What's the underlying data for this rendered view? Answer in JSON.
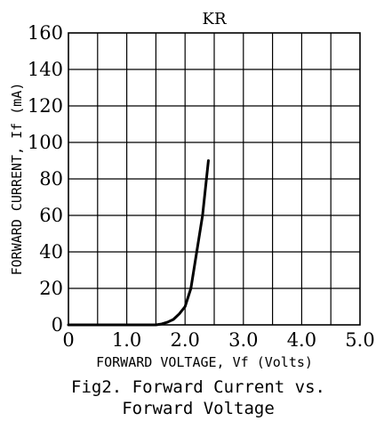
{
  "chart_data": {
    "type": "line",
    "title": "KR",
    "xlabel": "FORWARD VOLTAGE, Vf (Volts)",
    "ylabel": "FORWARD CURRENT, If (mA)",
    "xlim": [
      0,
      5
    ],
    "ylim": [
      0,
      160
    ],
    "x_minor_step": 0.5,
    "y_step": 20,
    "x_ticks": [
      "0",
      "1.0",
      "2.0",
      "3.0",
      "4.0",
      "5.0"
    ],
    "y_ticks": [
      "0",
      "20",
      "40",
      "60",
      "80",
      "100",
      "120",
      "140",
      "160"
    ],
    "grid": true,
    "series": [
      {
        "x": [
          0,
          1.5,
          1.6,
          1.7,
          1.8,
          1.9,
          2.0,
          2.1,
          2.2,
          2.3,
          2.4
        ],
        "y": [
          0,
          0,
          0.5,
          1.5,
          3,
          6,
          10,
          20,
          40,
          60,
          90
        ]
      }
    ]
  },
  "caption": {
    "line1": "Fig2. Forward Current vs.",
    "line2": "Forward Voltage"
  }
}
